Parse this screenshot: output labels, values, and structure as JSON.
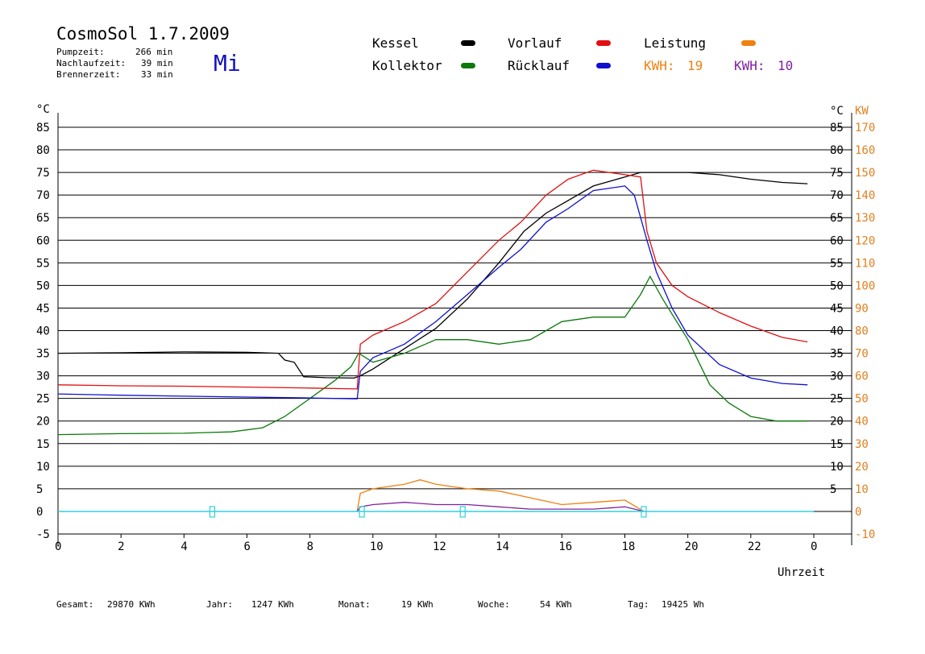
{
  "header": {
    "title": "CosmoSol 1.7.2009",
    "weekday": "Mi",
    "stats": [
      {
        "label": "Pumpzeit:",
        "value": "266 min"
      },
      {
        "label": "Nachlaufzeit:",
        "value": "39 min"
      },
      {
        "label": "Brennerzeit:",
        "value": "33 min"
      }
    ]
  },
  "legend": {
    "kessel": "Kessel",
    "kollektor": "Kollektor",
    "vorlauf": "Vorlauf",
    "ruecklauf": "Rücklauf",
    "leistung": "Leistung",
    "kwh1_label": "KWH:",
    "kwh1_value": "19",
    "kwh2_label": "KWH:",
    "kwh2_value": "10",
    "colors": {
      "kessel": "#000000",
      "kollektor": "#0a7a0a",
      "vorlauf": "#e01010",
      "ruecklauf": "#1010d0",
      "leistung": "#f08010",
      "kwh2": "#8020a0",
      "pump": "#30d0e0"
    }
  },
  "footer": [
    {
      "label": "Gesamt:",
      "value": "29870 KWh"
    },
    {
      "label": "Jahr:",
      "value": "1247 KWh"
    },
    {
      "label": "Monat:",
      "value": "19 KWh"
    },
    {
      "label": "Woche:",
      "value": "54 KWh"
    },
    {
      "label": "Tag:",
      "value": "19425 Wh"
    }
  ],
  "chart_data": {
    "type": "line",
    "ylabel_left": "°C",
    "ylabel_right_unit1": "°C",
    "ylabel_right_unit2": "KW",
    "xlabel": "Uhrzeit",
    "xlim": [
      0,
      24
    ],
    "ylim": [
      -5,
      85
    ],
    "ylim_right_kw": [
      -10,
      170
    ],
    "x_ticks": [
      "0",
      "2",
      "4",
      "6",
      "8",
      "10",
      "12",
      "14",
      "16",
      "18",
      "20",
      "22",
      "0"
    ],
    "y_ticks": [
      -5,
      0,
      5,
      10,
      15,
      20,
      25,
      30,
      35,
      40,
      45,
      50,
      55,
      60,
      65,
      70,
      75,
      80,
      85
    ],
    "y_ticks_right": [
      "",
      "",
      "5",
      "10",
      "15",
      "20",
      "25",
      "30",
      "35",
      "40",
      "45",
      "50",
      "55",
      "60",
      "65",
      "70",
      "75",
      "80",
      "85"
    ],
    "y_ticks_kw": [
      -10,
      0,
      10,
      20,
      30,
      40,
      50,
      60,
      70,
      80,
      90,
      100,
      110,
      120,
      130,
      140,
      150,
      160,
      170
    ],
    "grid": true,
    "series": [
      {
        "name": "Kessel",
        "color": "#000000",
        "points": [
          [
            0,
            35
          ],
          [
            2,
            35.1
          ],
          [
            4,
            35.3
          ],
          [
            6,
            35.2
          ],
          [
            7,
            35
          ],
          [
            7.2,
            33.5
          ],
          [
            7.5,
            33
          ],
          [
            7.8,
            29.8
          ],
          [
            8.5,
            29.6
          ],
          [
            9.4,
            29.5
          ],
          [
            9.6,
            30
          ],
          [
            10,
            31.5
          ],
          [
            11,
            36
          ],
          [
            12,
            40.5
          ],
          [
            13,
            47
          ],
          [
            14,
            55
          ],
          [
            14.8,
            62
          ],
          [
            15.5,
            66
          ],
          [
            16,
            68
          ],
          [
            17,
            72
          ],
          [
            18,
            74
          ],
          [
            18.5,
            75
          ],
          [
            20,
            75
          ],
          [
            21,
            74.5
          ],
          [
            22,
            73.5
          ],
          [
            23,
            72.8
          ],
          [
            23.8,
            72.5
          ]
        ]
      },
      {
        "name": "Kollektor",
        "color": "#0a7a0a",
        "points": [
          [
            0,
            17
          ],
          [
            2,
            17.2
          ],
          [
            4,
            17.3
          ],
          [
            5.5,
            17.6
          ],
          [
            6.5,
            18.5
          ],
          [
            7.2,
            21
          ],
          [
            8,
            25
          ],
          [
            8.8,
            29
          ],
          [
            9.3,
            32
          ],
          [
            9.55,
            35
          ],
          [
            10,
            33
          ],
          [
            11,
            35
          ],
          [
            12,
            38
          ],
          [
            13,
            38
          ],
          [
            14,
            37
          ],
          [
            15,
            38
          ],
          [
            16,
            42
          ],
          [
            17,
            43
          ],
          [
            18,
            43
          ],
          [
            18.5,
            48
          ],
          [
            18.8,
            52
          ],
          [
            19.2,
            47
          ],
          [
            20,
            38
          ],
          [
            20.7,
            28
          ],
          [
            21.3,
            24
          ],
          [
            22,
            21
          ],
          [
            22.8,
            20
          ],
          [
            23.8,
            20
          ]
        ]
      },
      {
        "name": "Vorlauf",
        "color": "#e01010",
        "points": [
          [
            0,
            28
          ],
          [
            2,
            27.8
          ],
          [
            4,
            27.7
          ],
          [
            6,
            27.5
          ],
          [
            8,
            27.3
          ],
          [
            9.5,
            27.1
          ],
          [
            9.6,
            37
          ],
          [
            10,
            39
          ],
          [
            11,
            42
          ],
          [
            12,
            46
          ],
          [
            13,
            53
          ],
          [
            14,
            60
          ],
          [
            14.7,
            64
          ],
          [
            15.5,
            70
          ],
          [
            16.2,
            73.5
          ],
          [
            17,
            75.5
          ],
          [
            18,
            74.5
          ],
          [
            18.5,
            74
          ],
          [
            18.7,
            62
          ],
          [
            19,
            55
          ],
          [
            19.5,
            50
          ],
          [
            20,
            47.5
          ],
          [
            21,
            44
          ],
          [
            22,
            41
          ],
          [
            23,
            38.5
          ],
          [
            23.8,
            37.5
          ]
        ]
      },
      {
        "name": "Rücklauf",
        "color": "#1010d0",
        "points": [
          [
            0,
            26
          ],
          [
            2,
            25.7
          ],
          [
            4,
            25.5
          ],
          [
            6,
            25.3
          ],
          [
            8,
            25.1
          ],
          [
            9.5,
            24.9
          ],
          [
            9.6,
            31
          ],
          [
            10,
            34
          ],
          [
            11,
            37
          ],
          [
            12,
            42
          ],
          [
            13,
            48
          ],
          [
            14,
            54
          ],
          [
            14.7,
            58
          ],
          [
            15.5,
            64
          ],
          [
            16.2,
            67
          ],
          [
            17,
            71
          ],
          [
            18,
            72
          ],
          [
            18.3,
            70
          ],
          [
            18.7,
            60
          ],
          [
            19,
            53
          ],
          [
            19.5,
            45
          ],
          [
            20,
            39
          ],
          [
            21,
            32.5
          ],
          [
            22,
            29.5
          ],
          [
            23,
            28.3
          ],
          [
            23.8,
            28
          ]
        ]
      },
      {
        "name": "Leistung",
        "color": "#f08010",
        "axis": "kw",
        "points": [
          [
            9.5,
            0
          ],
          [
            9.6,
            8
          ],
          [
            10,
            10
          ],
          [
            11,
            12
          ],
          [
            11.5,
            14
          ],
          [
            12,
            12
          ],
          [
            13,
            10
          ],
          [
            14,
            9
          ],
          [
            15,
            6
          ],
          [
            16,
            3
          ],
          [
            17,
            4
          ],
          [
            18,
            5
          ],
          [
            18.6,
            0
          ]
        ]
      },
      {
        "name": "KWH",
        "color": "#8020a0",
        "axis": "kw",
        "points": [
          [
            9.5,
            0
          ],
          [
            9.6,
            2
          ],
          [
            10,
            3
          ],
          [
            11,
            4
          ],
          [
            12,
            3
          ],
          [
            13,
            3
          ],
          [
            14,
            2
          ],
          [
            15,
            1
          ],
          [
            16,
            1
          ],
          [
            17,
            1
          ],
          [
            18,
            2
          ],
          [
            18.6,
            0
          ]
        ]
      }
    ],
    "pump_markers_hours": [
      4.9,
      9.65,
      12.85,
      18.6
    ]
  }
}
